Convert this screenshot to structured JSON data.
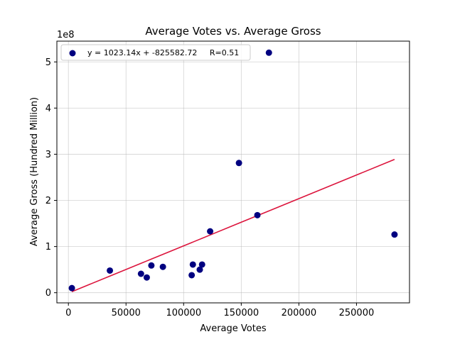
{
  "chart_data": {
    "type": "scatter",
    "title": "Average Votes vs. Average Gross",
    "xlabel": "Average Votes",
    "ylabel": "Average Gross (Hundred Million)",
    "y_offset_text": "1e8",
    "xlim": [
      -10000,
      296000
    ],
    "ylim": [
      -22000000,
      545000000
    ],
    "x_ticks": [
      0,
      50000,
      100000,
      150000,
      200000,
      250000
    ],
    "x_tick_labels": [
      "0",
      "50000",
      "100000",
      "150000",
      "200000",
      "250000"
    ],
    "y_ticks": [
      0,
      100000000,
      200000000,
      300000000,
      400000000,
      500000000
    ],
    "y_tick_labels": [
      "0",
      "1",
      "2",
      "3",
      "4",
      "5"
    ],
    "grid": true,
    "legend_position": "upper-left",
    "legend_label": "y = 1023.14x + -825582.72     R=0.51",
    "colors": {
      "points": "#000080",
      "trend_line": "#dc143c"
    },
    "series": [
      {
        "type": "scatter",
        "x": [
          3000,
          36000,
          63000,
          68000,
          72000,
          82000,
          107000,
          108000,
          114000,
          116000,
          123000,
          148000,
          164000,
          174000,
          283000
        ],
        "y": [
          10000000,
          48000000,
          41000000,
          33000000,
          59000000,
          56000000,
          38000000,
          61000000,
          50000000,
          61000000,
          133000000,
          281000000,
          168000000,
          520000000,
          126000000
        ]
      },
      {
        "type": "line",
        "x": [
          3000,
          36000,
          63000,
          68000,
          72000,
          82000,
          107000,
          108000,
          114000,
          116000,
          123000,
          148000,
          164000,
          174000,
          283000
        ],
        "slope": 1023.14,
        "intercept": -825582.72
      }
    ]
  }
}
